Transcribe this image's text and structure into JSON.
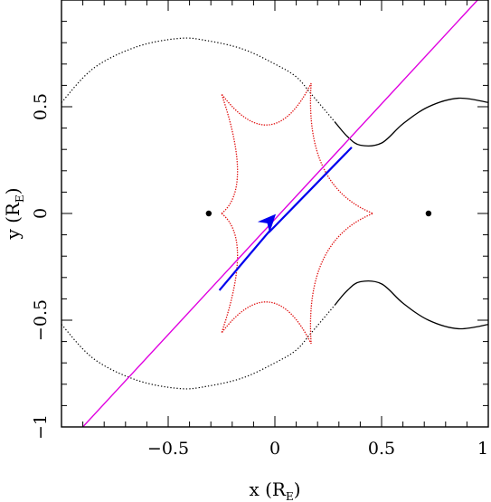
{
  "chart_data": {
    "type": "line",
    "xlabel": "x (R",
    "xlabel_subscript": "E",
    "xlabel_close": ")",
    "ylabel": "y (R",
    "ylabel_subscript": "E",
    "ylabel_close": ")",
    "xlim": [
      -1.0,
      1.0
    ],
    "ylim": [
      -1.0,
      1.0
    ],
    "x_ticks": [
      -0.5,
      0,
      0.5,
      1
    ],
    "x_tick_labels": [
      "−0.5",
      "0",
      "0.5",
      "1"
    ],
    "y_ticks": [
      -1,
      -0.5,
      0,
      0.5
    ],
    "y_tick_labels": [
      "−1",
      "−0.5",
      "0",
      "0.5"
    ],
    "grid": false,
    "colors": {
      "caustic": "#e01010",
      "trajectory": "#e000e0",
      "source_path": "#0000ee",
      "critical_curve": "#000000",
      "lens_point": "#000000"
    },
    "lens_positions": [
      {
        "x": -0.31,
        "y": 0.0
      },
      {
        "x": 0.72,
        "y": 0.0
      }
    ],
    "caustic": {
      "cusps": [
        {
          "x": -0.25,
          "y": 0.0
        },
        {
          "x": -0.25,
          "y": 0.56
        },
        {
          "x": 0.17,
          "y": 0.61
        },
        {
          "x": 0.46,
          "y": 0.0
        },
        {
          "x": 0.17,
          "y": -0.61
        },
        {
          "x": -0.25,
          "y": -0.56
        }
      ]
    },
    "trajectory": {
      "x": [
        -0.9,
        0.95
      ],
      "y": [
        -1.0,
        1.0
      ]
    },
    "source_path": {
      "x": [
        -0.26,
        -0.04,
        0.0,
        0.36
      ],
      "y": [
        -0.36,
        -0.1,
        -0.06,
        0.31
      ],
      "arrow_at": {
        "x": -0.03,
        "y": -0.04
      }
    },
    "critical_curves": [
      {
        "name": "outer-dotted",
        "x": [
          -1.0,
          -0.85,
          -0.65,
          -0.45,
          -0.32,
          -0.15,
          0.0,
          0.1,
          0.17,
          0.28
        ],
        "y": [
          0.52,
          0.68,
          0.78,
          0.82,
          0.81,
          0.77,
          0.7,
          0.64,
          0.56,
          0.43
        ]
      },
      {
        "name": "upper-solid",
        "x": [
          0.28,
          0.34,
          0.4,
          0.5,
          0.6,
          0.72,
          0.86,
          1.0
        ],
        "y": [
          0.43,
          0.36,
          0.32,
          0.33,
          0.42,
          0.5,
          0.54,
          0.52
        ]
      },
      {
        "name": "lower-solid",
        "x": [
          0.28,
          0.34,
          0.4,
          0.5,
          0.6,
          0.72,
          0.86,
          1.0
        ],
        "y": [
          -0.43,
          -0.36,
          -0.32,
          -0.33,
          -0.42,
          -0.5,
          -0.54,
          -0.52
        ]
      },
      {
        "name": "outer-dotted-lower",
        "x": [
          -1.0,
          -0.85,
          -0.65,
          -0.45,
          -0.32,
          -0.15,
          0.0,
          0.1,
          0.17,
          0.28
        ],
        "y": [
          -0.52,
          -0.68,
          -0.78,
          -0.82,
          -0.81,
          -0.77,
          -0.7,
          -0.64,
          -0.56,
          -0.43
        ]
      }
    ]
  }
}
